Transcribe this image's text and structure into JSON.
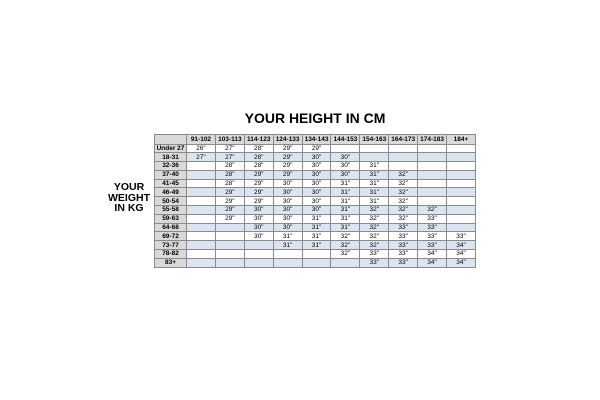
{
  "chart_data": {
    "type": "table",
    "title": "YOUR HEIGHT IN CM",
    "row_axis_label": "YOUR WEIGHT IN KG",
    "columns": [
      "91-102",
      "103-113",
      "114-123",
      "124-133",
      "134-143",
      "144-153",
      "154-163",
      "164-173",
      "174-183",
      "184+"
    ],
    "rows": [
      {
        "label": "Under 27",
        "values": [
          "26\"",
          "27\"",
          "28\"",
          "29\"",
          "29\"",
          "",
          "",
          "",
          "",
          ""
        ]
      },
      {
        "label": "18-31",
        "values": [
          "27\"",
          "27\"",
          "28\"",
          "29\"",
          "30\"",
          "30\"",
          "",
          "",
          "",
          ""
        ]
      },
      {
        "label": "32-36",
        "values": [
          "",
          "28\"",
          "28\"",
          "29\"",
          "30\"",
          "30\"",
          "31\"",
          "",
          "",
          ""
        ]
      },
      {
        "label": "37-40",
        "values": [
          "",
          "28\"",
          "29\"",
          "29\"",
          "30\"",
          "30\"",
          "31\"",
          "32\"",
          "",
          ""
        ]
      },
      {
        "label": "41-45",
        "values": [
          "",
          "28\"",
          "29\"",
          "30\"",
          "30\"",
          "31\"",
          "31\"",
          "32\"",
          "",
          ""
        ]
      },
      {
        "label": "46-49",
        "values": [
          "",
          "29\"",
          "29\"",
          "30\"",
          "30\"",
          "31\"",
          "31\"",
          "32\"",
          "",
          ""
        ]
      },
      {
        "label": "50-54",
        "values": [
          "",
          "29\"",
          "29\"",
          "30\"",
          "30\"",
          "31\"",
          "31\"",
          "32\"",
          "",
          ""
        ]
      },
      {
        "label": "55-58",
        "values": [
          "",
          "29\"",
          "30\"",
          "30\"",
          "30\"",
          "31\"",
          "32\"",
          "32\"",
          "32\"",
          ""
        ]
      },
      {
        "label": "59-63",
        "values": [
          "",
          "29\"",
          "30\"",
          "30\"",
          "31\"",
          "31\"",
          "32\"",
          "32\"",
          "33\"",
          ""
        ]
      },
      {
        "label": "64-68",
        "values": [
          "",
          "",
          "30\"",
          "30\"",
          "31\"",
          "31\"",
          "32\"",
          "33\"",
          "33\"",
          ""
        ]
      },
      {
        "label": "69-72",
        "values": [
          "",
          "",
          "30\"",
          "31\"",
          "31\"",
          "32\"",
          "32\"",
          "33\"",
          "33\"",
          "33\""
        ]
      },
      {
        "label": "73-77",
        "values": [
          "",
          "",
          "",
          "31\"",
          "31\"",
          "32\"",
          "32\"",
          "33\"",
          "33\"",
          "34\""
        ]
      },
      {
        "label": "78-82",
        "values": [
          "",
          "",
          "",
          "",
          "",
          "32\"",
          "33\"",
          "33\"",
          "34\"",
          "34\""
        ]
      },
      {
        "label": "83+",
        "values": [
          "",
          "",
          "",
          "",
          "",
          "",
          "33\"",
          "33\"",
          "34\"",
          "34\""
        ]
      }
    ],
    "colors": {
      "header": "#d9d9d9",
      "alt_row": "#dbe5f1",
      "row": "#ffffff",
      "border": "#8a8a8a"
    }
  },
  "side_label_lines": [
    "YOUR",
    "WEIGHT",
    "IN KG"
  ]
}
